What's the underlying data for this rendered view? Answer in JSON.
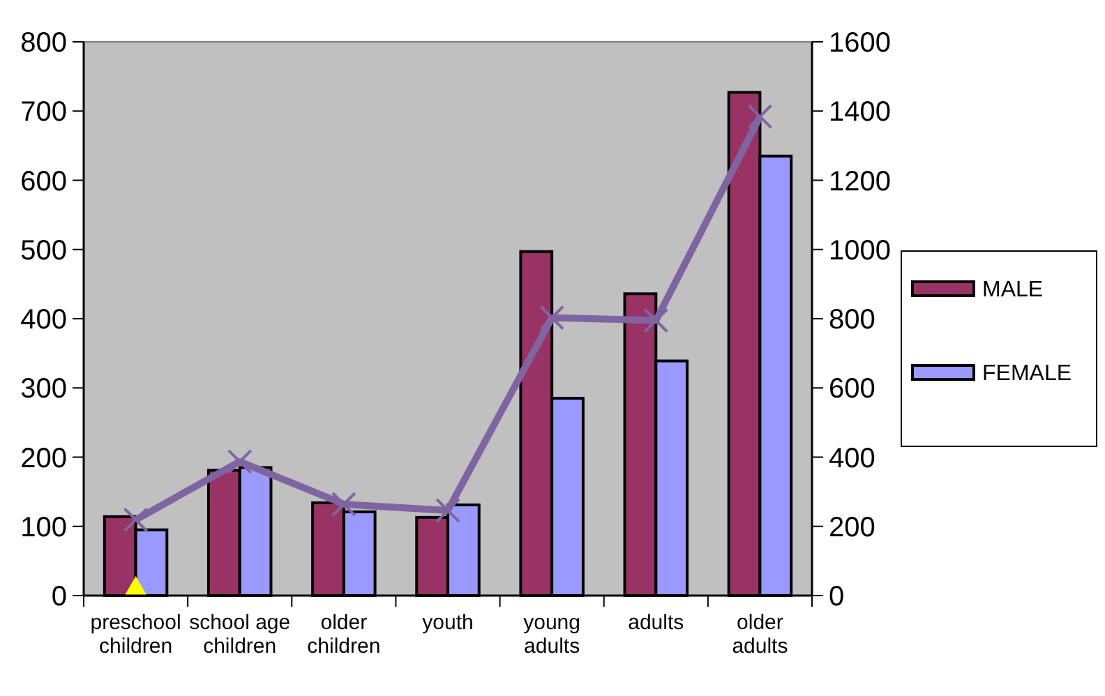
{
  "chart_data": {
    "type": "bar",
    "categories": [
      "preschool children",
      "school age children",
      "older children",
      "youth",
      "young adults",
      "adults",
      "older adults"
    ],
    "series": [
      {
        "name": "MALE",
        "color": "#993366",
        "values": [
          114,
          181,
          134,
          113,
          497,
          436,
          727
        ]
      },
      {
        "name": "FEMALE",
        "color": "#9999ff",
        "values": [
          95,
          185,
          121,
          131,
          285,
          339,
          635
        ]
      },
      {
        "type": "line",
        "axis": "y2",
        "color": "#8064a2",
        "marker": "cross",
        "values": [
          219,
          387,
          264,
          246,
          803,
          795,
          1384
        ]
      }
    ],
    "ylim": [
      0,
      800
    ],
    "yticks": [
      0,
      100,
      200,
      300,
      400,
      500,
      600,
      700,
      800
    ],
    "y2lim": [
      0,
      1600
    ],
    "y2ticks": [
      0,
      200,
      400,
      600,
      800,
      1000,
      1200,
      1400,
      1600
    ],
    "grid": false,
    "legend": "right"
  }
}
